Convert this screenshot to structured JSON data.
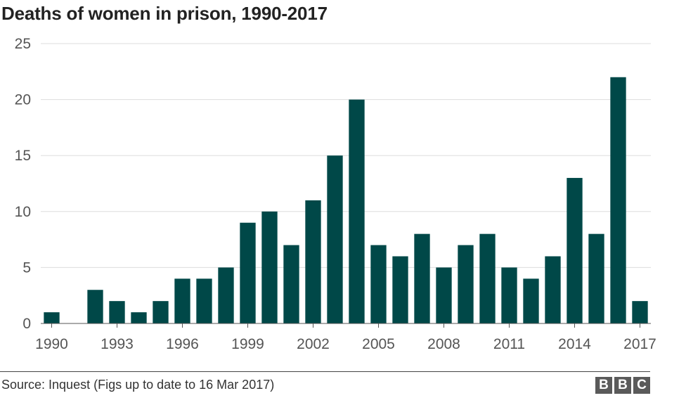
{
  "title": "Deaths of women in prison, 1990-2017",
  "source": "Source: Inquest (Figs up to date to 16 Mar 2017)",
  "logo": [
    "B",
    "B",
    "C"
  ],
  "colors": {
    "bar": "#004848",
    "grid": "#dddddd",
    "axis": "#555555"
  },
  "chart_data": {
    "type": "bar",
    "title": "Deaths of women in prison, 1990-2017",
    "xlabel": "",
    "ylabel": "",
    "categories": [
      1990,
      1991,
      1992,
      1993,
      1994,
      1995,
      1996,
      1997,
      1998,
      1999,
      2000,
      2001,
      2002,
      2003,
      2004,
      2005,
      2006,
      2007,
      2008,
      2009,
      2010,
      2011,
      2012,
      2013,
      2014,
      2015,
      2016,
      2017
    ],
    "values": [
      1,
      0,
      3,
      2,
      1,
      2,
      4,
      4,
      5,
      9,
      10,
      7,
      11,
      15,
      20,
      7,
      6,
      8,
      5,
      7,
      8,
      5,
      4,
      6,
      13,
      8,
      22,
      2
    ],
    "x_tick_labels": [
      "1990",
      "1993",
      "1996",
      "1999",
      "2002",
      "2005",
      "2008",
      "2011",
      "2014",
      "2017"
    ],
    "y_ticks": [
      0,
      5,
      10,
      15,
      20,
      25
    ],
    "ylim": [
      0,
      25
    ],
    "grid": true,
    "legend": "none"
  }
}
